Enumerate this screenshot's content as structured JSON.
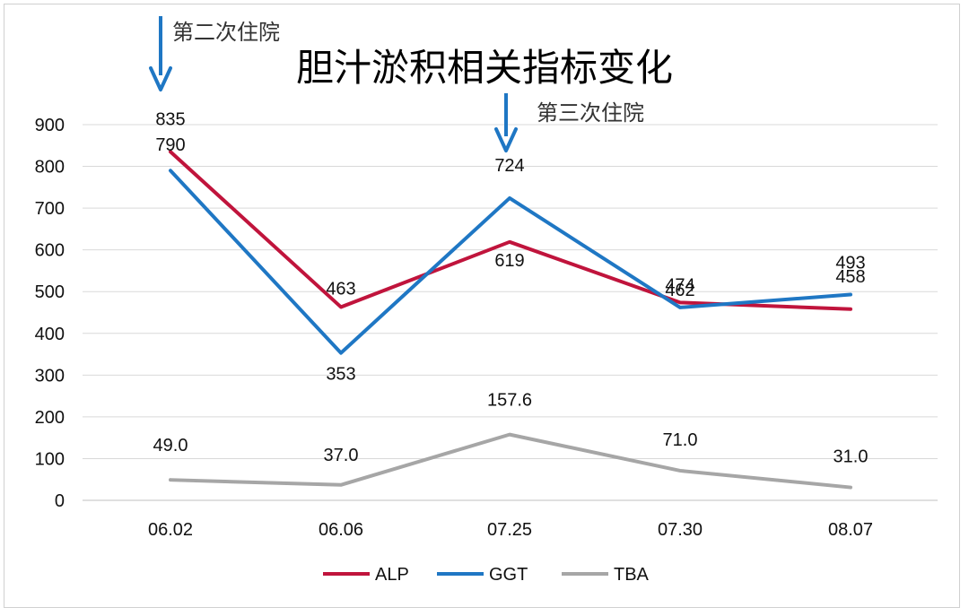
{
  "chart_data": {
    "type": "line",
    "title": "胆汁淤积相关指标变化",
    "categories": [
      "06.02",
      "06.06",
      "07.25",
      "07.30",
      "08.07"
    ],
    "ylim": [
      0,
      900
    ],
    "yticks": [
      0,
      100,
      200,
      300,
      400,
      500,
      600,
      700,
      800,
      900
    ],
    "grid": true,
    "legend_position": "bottom",
    "series": [
      {
        "name": "ALP",
        "color": "#c0143c",
        "values": [
          835,
          463,
          619,
          474,
          458
        ],
        "labels": [
          "835",
          "463",
          "619",
          "474",
          "458"
        ]
      },
      {
        "name": "GGT",
        "color": "#1f77c4",
        "values": [
          790,
          353,
          724,
          462,
          493
        ],
        "labels": [
          "790",
          "353",
          "724",
          "462",
          "493"
        ]
      },
      {
        "name": "TBA",
        "color": "#a6a6a6",
        "values": [
          49.0,
          37.0,
          157.6,
          71.0,
          31.0
        ],
        "labels": [
          "49.0",
          "37.0",
          "157.6",
          "71.0",
          "31.0"
        ]
      }
    ],
    "annotations": [
      {
        "text": "第二次住院",
        "category": "06.02",
        "arrow_color": "#1f77c4"
      },
      {
        "text": "第三次住院",
        "category": "07.25",
        "arrow_color": "#1f77c4"
      }
    ]
  }
}
